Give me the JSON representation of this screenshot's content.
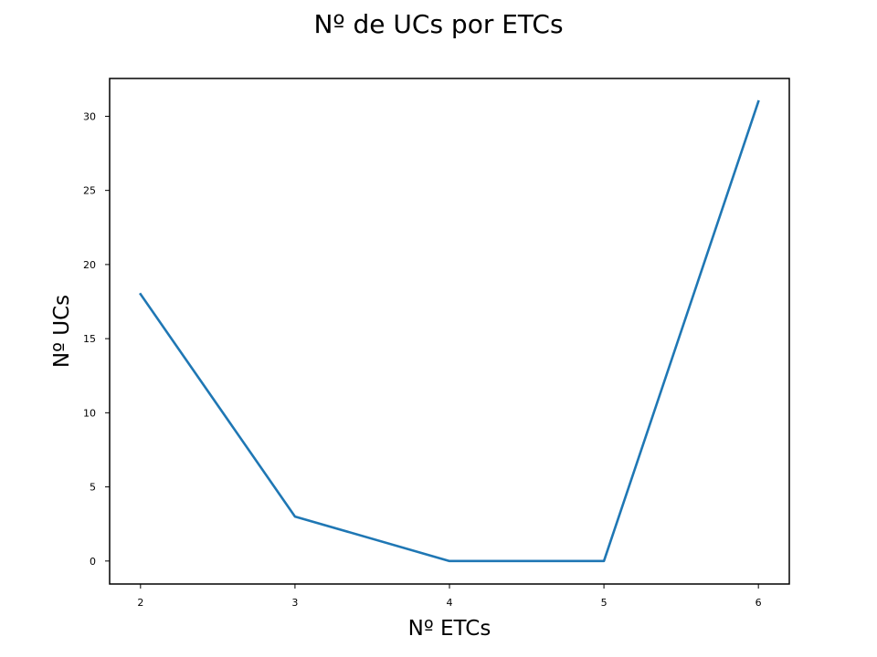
{
  "chart_data": {
    "type": "line",
    "title": "Nº de UCs por ETCs",
    "xlabel": "Nº ETCs",
    "ylabel": "Nº UCs",
    "x": [
      2,
      3,
      4,
      5,
      6
    ],
    "series": [
      {
        "values": [
          18,
          3,
          0,
          0,
          31
        ],
        "color": "#1f77b4"
      }
    ],
    "xticks": [
      2,
      3,
      4,
      5,
      6
    ],
    "yticks": [
      0,
      5,
      10,
      15,
      20,
      25,
      30
    ],
    "xlim": [
      1.8,
      6.2
    ],
    "ylim": [
      -1.55,
      32.55
    ],
    "grid": false
  }
}
